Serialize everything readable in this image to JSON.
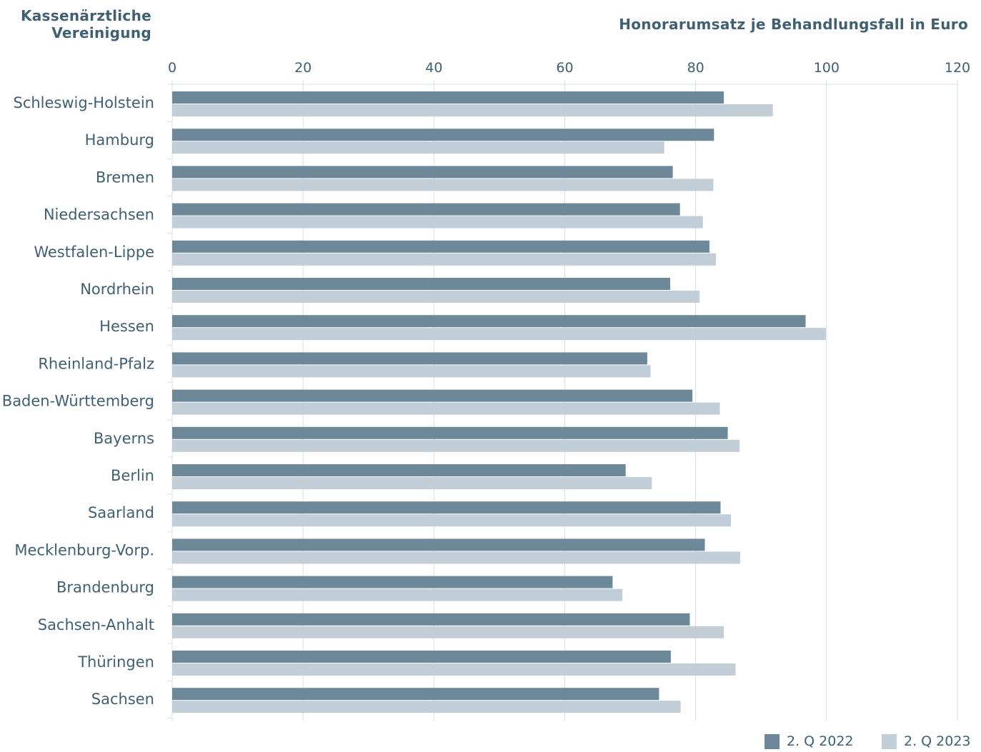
{
  "header": {
    "ytitle_line1": "Kassenärztliche",
    "ytitle_line2": "Vereinigung",
    "xtitle": "Honorarumsatz je Behandlungsfall in Euro"
  },
  "legend": {
    "s1": "2. Q 2022",
    "s2": "2. Q 2023"
  },
  "colors": {
    "series_2022": "#6d8898",
    "series_2023": "#c2ced7",
    "grid": "#d7e0e6",
    "text": "#3f5f73"
  },
  "chart_data": {
    "type": "bar",
    "orientation": "horizontal",
    "xlabel": "Honorarumsatz je Behandlungsfall in Euro",
    "ylabel": "Kassenärztliche Vereinigung",
    "xlim": [
      0,
      120
    ],
    "xticks": [
      0,
      20,
      40,
      60,
      80,
      100,
      120
    ],
    "grid": true,
    "legend_position": "bottom-right",
    "categories": [
      "Schleswig-Holstein",
      "Hamburg",
      "Bremen",
      "Niedersachsen",
      "Westfalen-Lippe",
      "Nordrhein",
      "Hessen",
      "Rheinland-Pfalz",
      "Baden-Württemberg",
      "Bayerns",
      "Berlin",
      "Saarland",
      "Mecklenburg-Vorp.",
      "Brandenburg",
      "Sachsen-Anhalt",
      "Thüringen",
      "Sachsen"
    ],
    "series": [
      {
        "name": "2. Q 2022",
        "values": [
          84.3,
          82.8,
          76.5,
          77.6,
          82.1,
          76.1,
          96.8,
          72.6,
          79.5,
          84.9,
          69.3,
          83.8,
          81.4,
          67.3,
          79.1,
          76.2,
          74.4
        ]
      },
      {
        "name": "2. Q 2023",
        "values": [
          91.8,
          75.2,
          82.7,
          81.1,
          83.1,
          80.6,
          99.9,
          73.1,
          83.7,
          86.7,
          73.3,
          85.4,
          86.8,
          68.8,
          84.3,
          86.1,
          77.7
        ]
      }
    ]
  }
}
